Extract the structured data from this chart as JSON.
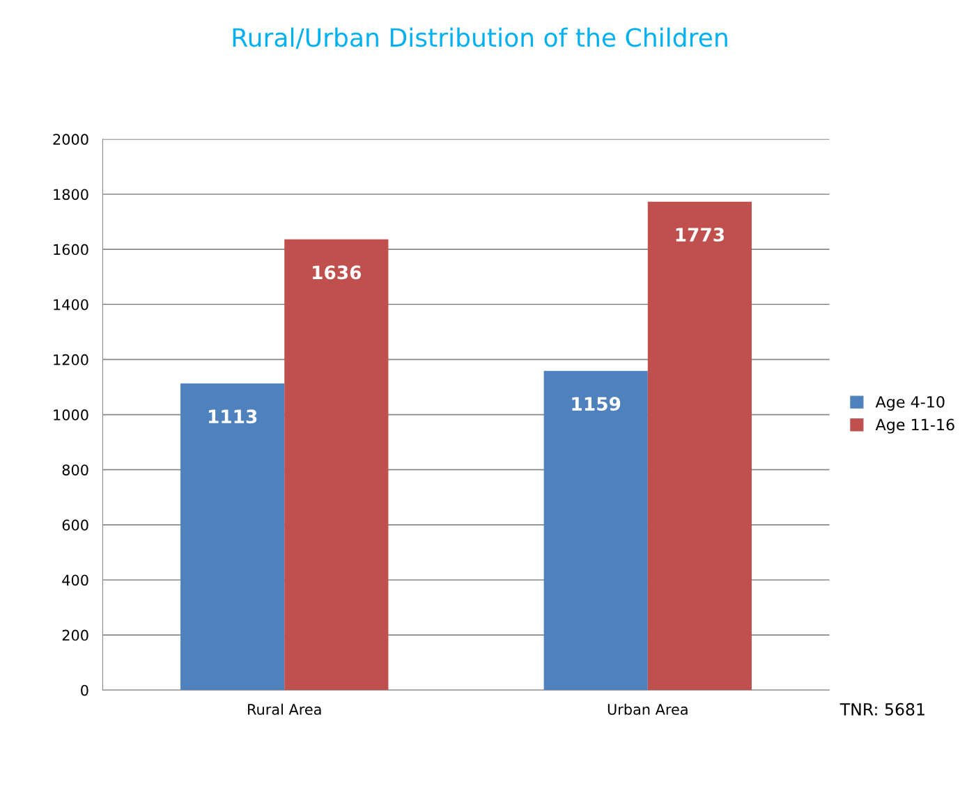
{
  "chart_data": {
    "type": "bar",
    "title": "Rural/Urban Distribution of the Children",
    "categories": [
      "Rural Area",
      "Urban Area"
    ],
    "series": [
      {
        "name": "Age 4-10",
        "color": "#4f81bd",
        "values": [
          1113,
          1159
        ]
      },
      {
        "name": "Age 11-16",
        "color": "#c0504d",
        "values": [
          1636,
          1773
        ]
      }
    ],
    "ylim": [
      0,
      2000
    ],
    "yticks": [
      0,
      200,
      400,
      600,
      800,
      1000,
      1200,
      1400,
      1600,
      1800,
      2000
    ],
    "grid": "y",
    "legend": "right",
    "data_labels": true,
    "annotations": [
      "TNR: 5681"
    ]
  }
}
